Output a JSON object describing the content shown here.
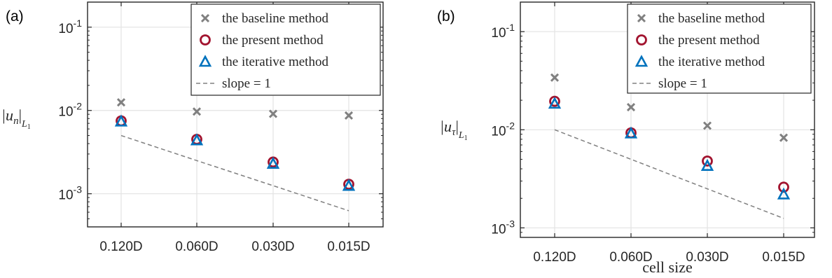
{
  "chart_data": [
    {
      "type": "scatter",
      "panel_label": "(a)",
      "title": "",
      "xlabel": "",
      "ylabel": {
        "base": "|u",
        "sub": "n",
        "tail": "|",
        "subsub": "L",
        "subsubsub": "1"
      },
      "categories": [
        "0.120D",
        "0.060D",
        "0.030D",
        "0.015D"
      ],
      "yscale": "log",
      "ylim": [
        0.0004,
        0.2
      ],
      "yticks": [
        {
          "base": "10",
          "exp": "-3"
        },
        {
          "base": "10",
          "exp": "-2"
        },
        {
          "base": "10",
          "exp": "-1"
        }
      ],
      "ytick_values": [
        0.001,
        0.01,
        0.1
      ],
      "grid": true,
      "legend_position": "top-right",
      "series": [
        {
          "name": "the baseline method",
          "marker": "x",
          "color": "#808080",
          "values": [
            0.0125,
            0.0097,
            0.0091,
            0.0087
          ]
        },
        {
          "name": "the present method",
          "marker": "circle",
          "color": "#A2142F",
          "values": [
            0.0075,
            0.0045,
            0.0024,
            0.0013
          ]
        },
        {
          "name": "the iterative method",
          "marker": "triangle",
          "color": "#0072BD",
          "values": [
            0.0074,
            0.0044,
            0.0023,
            0.00125
          ]
        },
        {
          "name": "slope = 1",
          "marker": "dashed",
          "color": "#808080",
          "values": [
            0.005,
            0.0025,
            0.00125,
            0.000625
          ]
        }
      ]
    },
    {
      "type": "scatter",
      "panel_label": "(b)",
      "title": "",
      "xlabel": "cell size",
      "ylabel": {
        "base": "|u",
        "sub": "τ",
        "tail": "|",
        "subsub": "L",
        "subsubsub": "1"
      },
      "categories": [
        "0.120D",
        "0.060D",
        "0.030D",
        "0.015D"
      ],
      "yscale": "log",
      "ylim": [
        0.0008,
        0.2
      ],
      "yticks": [
        {
          "base": "10",
          "exp": "-3"
        },
        {
          "base": "10",
          "exp": "-2"
        },
        {
          "base": "10",
          "exp": "-1"
        }
      ],
      "ytick_values": [
        0.001,
        0.01,
        0.1
      ],
      "grid": true,
      "legend_position": "top-right",
      "series": [
        {
          "name": "the baseline method",
          "marker": "x",
          "color": "#808080",
          "values": [
            0.034,
            0.017,
            0.011,
            0.0083
          ]
        },
        {
          "name": "the present method",
          "marker": "circle",
          "color": "#A2142F",
          "values": [
            0.0195,
            0.0093,
            0.0048,
            0.0026
          ]
        },
        {
          "name": "the iterative method",
          "marker": "triangle",
          "color": "#0072BD",
          "values": [
            0.0185,
            0.0092,
            0.0043,
            0.0022
          ]
        },
        {
          "name": "slope = 1",
          "marker": "dashed",
          "color": "#808080",
          "values": [
            0.01,
            0.005,
            0.0025,
            0.00125
          ]
        }
      ]
    }
  ]
}
